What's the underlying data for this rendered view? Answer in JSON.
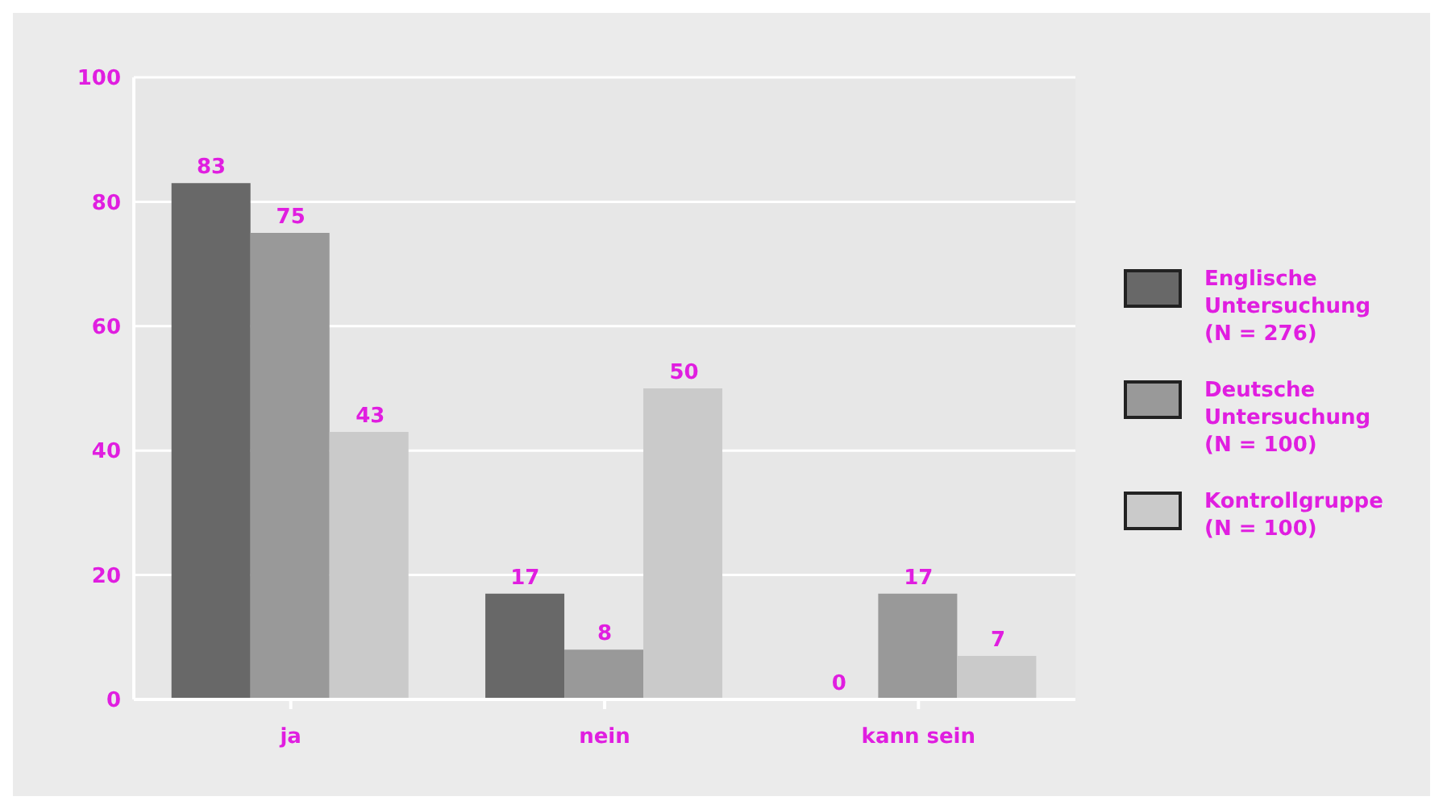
{
  "chart_data": {
    "type": "bar",
    "categories": [
      "ja",
      "nein",
      "kann sein"
    ],
    "series": [
      {
        "name": "Englische Untersuchung (N = 276)",
        "color": "#686868",
        "values": [
          83,
          17,
          0
        ]
      },
      {
        "name": "Deutsche Untersuchung (N = 100)",
        "color": "#999999",
        "values": [
          75,
          8,
          17
        ]
      },
      {
        "name": "Kontrollgruppe (N = 100)",
        "color": "#cacaca",
        "values": [
          43,
          50,
          7
        ]
      }
    ],
    "ylim": [
      0,
      100
    ],
    "yticks": [
      0,
      20,
      40,
      60,
      80,
      100
    ],
    "grid": "y",
    "legend": "right",
    "data_labels": true
  }
}
